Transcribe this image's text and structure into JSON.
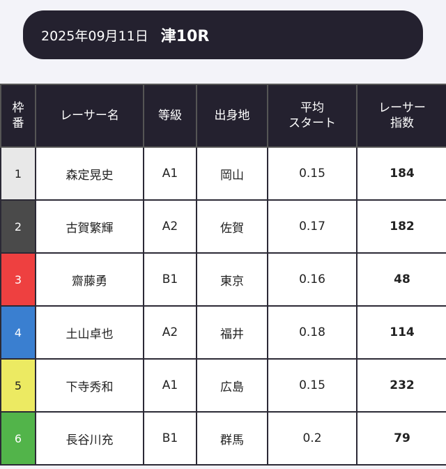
{
  "header": {
    "date": "2025年09月11日",
    "race": "津10R"
  },
  "columns": [
    "枠\n番",
    "レーサー名",
    "等級",
    "出身地",
    "平均\nスタート",
    "レーサー\n指数"
  ],
  "rows": [
    {
      "frame": "1",
      "name": "森定晃史",
      "grade": "A1",
      "origin": "岡山",
      "avg_start": "0.15",
      "index": "184",
      "bg": "#e8e8e8",
      "fg": "#222222"
    },
    {
      "frame": "2",
      "name": "古賀繁輝",
      "grade": "A2",
      "origin": "佐賀",
      "avg_start": "0.17",
      "index": "182",
      "bg": "#4a4a4a",
      "fg": "#ffffff"
    },
    {
      "frame": "3",
      "name": "齋藤勇",
      "grade": "B1",
      "origin": "東京",
      "avg_start": "0.16",
      "index": "48",
      "bg": "#ee4040",
      "fg": "#ffffff"
    },
    {
      "frame": "4",
      "name": "土山卓也",
      "grade": "A2",
      "origin": "福井",
      "avg_start": "0.18",
      "index": "114",
      "bg": "#3a7fd0",
      "fg": "#ffffff"
    },
    {
      "frame": "5",
      "name": "下寺秀和",
      "grade": "A1",
      "origin": "広島",
      "avg_start": "0.15",
      "index": "232",
      "bg": "#ecea62",
      "fg": "#222222"
    },
    {
      "frame": "6",
      "name": "長谷川充",
      "grade": "B1",
      "origin": "群馬",
      "avg_start": "0.2",
      "index": "79",
      "bg": "#52b44a",
      "fg": "#ffffff"
    }
  ]
}
